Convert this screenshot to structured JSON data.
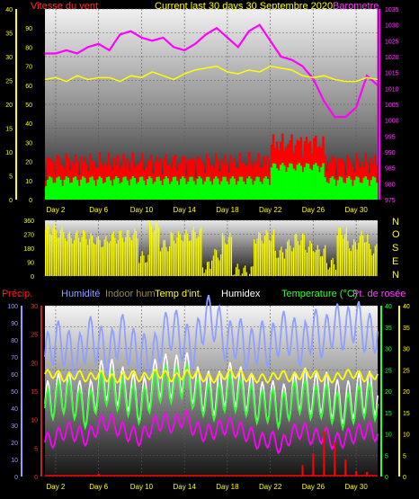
{
  "header": {
    "title": "Current last 30 days 30 Septembre 2020",
    "wind_label": "Vitesse du vent",
    "baro_label": "Barometre"
  },
  "bottom_legend": {
    "precip": "Précip.",
    "humidity": "Humidité",
    "indoor_hum": "Indoor hum",
    "temp_int": "Temp d'int.",
    "humidex": "Humidex",
    "temperature": "Temperature (°C)",
    "dew_point": "Pt. de rosée"
  },
  "compass": [
    "N",
    "O",
    "S",
    "E",
    "N"
  ],
  "colors": {
    "wind_red": "#ff0000",
    "wind_green": "#00ff00",
    "temperature_yellow": "#ffff00",
    "barometer": "#ff00ff",
    "humidity": "#8f9fff",
    "humidex": "#ffffff",
    "dew_point": "#ff00ff",
    "precip": "#ff0000"
  },
  "chart_data": [
    {
      "type": "line",
      "name": "wind-baro",
      "x_ticks": [
        "Day 2",
        "Day 6",
        "Day 10",
        "Day 14",
        "Day 18",
        "Day 22",
        "Day 26",
        "Day 30"
      ],
      "left_axis_ticks": [
        "0",
        "5",
        "10",
        "15",
        "20",
        "25",
        "30",
        "35",
        "40"
      ],
      "middle_axis_ticks": [
        "0",
        "10",
        "20",
        "30",
        "40",
        "50",
        "60",
        "70",
        "80",
        "90"
      ],
      "right_axis_ticks": [
        "975",
        "980",
        "985",
        "990",
        "995",
        "1000",
        "1005",
        "1010",
        "1015",
        "1020",
        "1025",
        "1030",
        "1035"
      ],
      "left_ylim": [
        0,
        40
      ],
      "right_ylim": [
        975,
        1035
      ],
      "series": [
        {
          "name": "Barometre",
          "values": [
            1021,
            1021,
            1022,
            1021,
            1023,
            1024,
            1022,
            1027,
            1028,
            1026,
            1025,
            1026,
            1023,
            1022,
            1024,
            1027,
            1029,
            1026,
            1023,
            1028,
            1030,
            1025,
            1020,
            1019,
            1017,
            1013,
            1006,
            1001,
            1001,
            1004,
            1014,
            1011
          ]
        },
        {
          "name": "Temperature",
          "values": [
            63,
            64,
            62,
            65,
            63,
            64,
            64,
            62,
            65,
            64,
            67,
            65,
            63,
            66,
            68,
            69,
            70,
            67,
            66,
            68,
            67,
            70,
            69,
            68,
            65,
            64,
            65,
            63,
            62,
            62,
            64,
            63
          ]
        }
      ]
    },
    {
      "type": "line",
      "name": "wind-direction",
      "axis_ticks": [
        "0",
        "90",
        "180",
        "270",
        "360"
      ],
      "ylim": [
        0,
        360
      ],
      "values": [
        300,
        280,
        250,
        260,
        240,
        220,
        250,
        260,
        270,
        120,
        320,
        200,
        250,
        260,
        280,
        60,
        140,
        240,
        40,
        30,
        250,
        260,
        150,
        200,
        240,
        190,
        160,
        80,
        280,
        200,
        250,
        170
      ]
    },
    {
      "type": "line",
      "name": "temp-humidity",
      "x_ticks": [
        "Day 2",
        "Day 6",
        "Day 10",
        "Day 14",
        "Day 18",
        "Day 22",
        "Day 26",
        "Day 30"
      ],
      "left_axis_ticks": [
        "0",
        "10",
        "20",
        "30",
        "40",
        "50",
        "60",
        "70",
        "80",
        "90",
        "100"
      ],
      "precip_axis_ticks": [
        "0",
        "5",
        "10",
        "15",
        "20",
        "25",
        "30"
      ],
      "right_axis_ticks": [
        "0",
        "5",
        "10",
        "15",
        "20",
        "25",
        "30",
        "35",
        "40"
      ],
      "ylim": [
        0,
        40
      ],
      "series": [
        {
          "name": "Humidité",
          "values": [
            28,
            32,
            30,
            27,
            33,
            31,
            28,
            34,
            30,
            29,
            27,
            33,
            35,
            31,
            30,
            38,
            36,
            31,
            33,
            29,
            32,
            30,
            34,
            33,
            30,
            35,
            32,
            36,
            34,
            37,
            33,
            34
          ]
        },
        {
          "name": "Temperature (°C)",
          "values": [
            16,
            18,
            19,
            17,
            15,
            20,
            21,
            19,
            18,
            16,
            20,
            22,
            21,
            23,
            19,
            18,
            17,
            20,
            19,
            18,
            16,
            17,
            15,
            18,
            19,
            17,
            18,
            16,
            15,
            17,
            18,
            17
          ]
        },
        {
          "name": "Temp d'int.",
          "values": [
            24,
            24,
            23,
            24,
            23,
            24,
            23,
            23,
            24,
            23,
            24,
            24,
            23,
            24,
            24,
            23,
            23,
            24,
            24,
            23,
            23,
            23,
            24,
            23,
            24,
            24,
            23,
            23,
            24,
            24,
            23,
            24
          ]
        },
        {
          "name": "Pt. de rosée",
          "values": [
            8,
            9,
            11,
            10,
            9,
            12,
            13,
            11,
            10,
            9,
            12,
            13,
            12,
            14,
            11,
            10,
            11,
            12,
            11,
            10,
            8,
            9,
            7,
            10,
            11,
            9,
            10,
            8,
            9,
            10,
            11,
            10
          ]
        },
        {
          "name": "Humidex",
          "values": [
            17,
            19,
            20,
            18,
            16,
            22,
            23,
            21,
            20,
            17,
            22,
            24,
            23,
            25,
            21,
            20,
            19,
            22,
            21,
            20,
            17,
            18,
            16,
            19,
            21,
            19,
            20,
            18,
            17,
            19,
            20,
            19
          ]
        },
        {
          "name": "Précip.",
          "values": [
            0,
            0,
            0,
            0,
            0.3,
            0.5,
            0,
            0,
            0,
            0,
            0,
            0,
            0,
            0,
            0,
            0,
            0,
            0,
            0,
            0,
            0,
            0,
            0,
            0,
            2,
            4,
            8,
            6,
            3,
            1,
            0.8,
            0
          ]
        }
      ]
    }
  ]
}
